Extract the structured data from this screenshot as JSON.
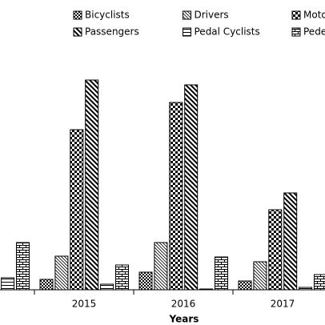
{
  "chart_data": {
    "type": "bar",
    "x_label": "Years",
    "categories": [
      null,
      "2015",
      "2016",
      "2017"
    ],
    "ylim": [
      0,
      300
    ],
    "series": [
      {
        "name": "Bicyclists",
        "color": "#000000",
        "values": [
          null,
          13,
          22,
          11
        ]
      },
      {
        "name": "Drivers",
        "color": "#000000",
        "values": [
          null,
          42,
          59,
          35
        ]
      },
      {
        "name": "Motorcyclists",
        "color": "#000000",
        "values": [
          null,
          200,
          234,
          100
        ]
      },
      {
        "name": "Passengers",
        "color": "#000000",
        "values": [
          null,
          262,
          256,
          121
        ]
      },
      {
        "name": "Pedal Cyclists",
        "color": "#000000",
        "values": [
          15,
          7,
          1,
          3
        ]
      },
      {
        "name": "Pedestrians",
        "color": "#000000",
        "values": [
          59,
          31,
          41,
          19
        ]
      }
    ]
  }
}
